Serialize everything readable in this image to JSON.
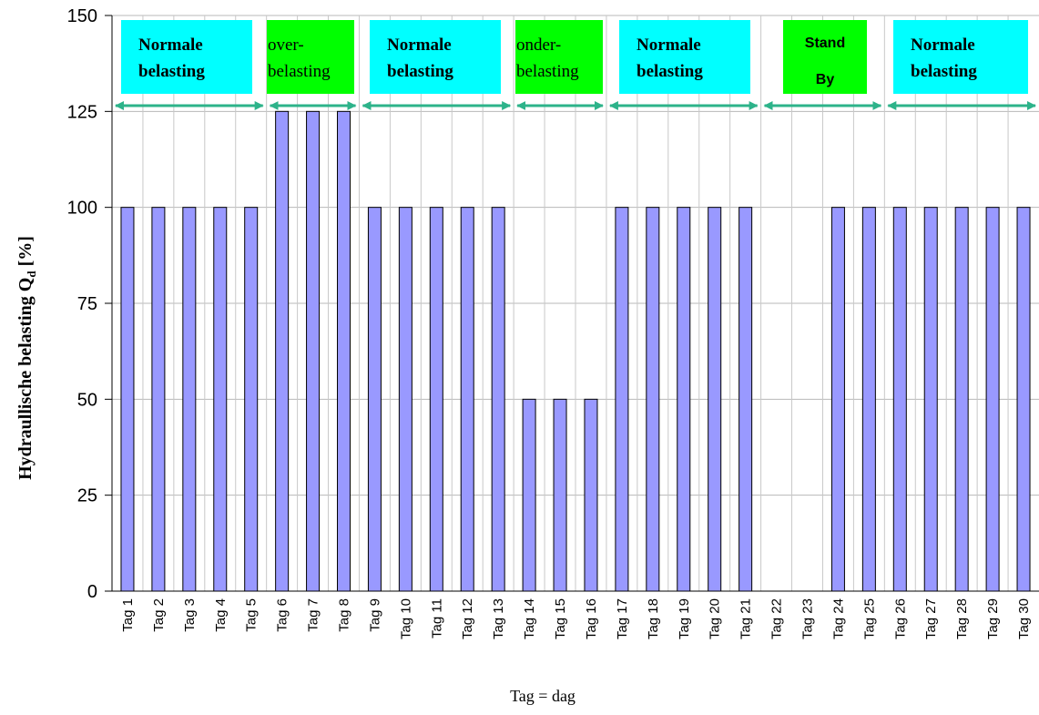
{
  "chart_data": {
    "type": "bar",
    "ylabel": "Hydraullische belasting Q",
    "ylabel_sub": "d",
    "ylabel_unit": " [%]",
    "xlabel": "Tag = dag",
    "ylim": [
      0,
      150
    ],
    "y_ticks": [
      "0",
      "25",
      "50",
      "75",
      "100",
      "125",
      "150"
    ],
    "grid": true,
    "categories": [
      "Tag 1",
      "Tag 2",
      "Tag 3",
      "Tag 4",
      "Tag 5",
      "Tag 6",
      "Tag 7",
      "Tag 8",
      "Tag 9",
      "Tag 10",
      "Tag 11",
      "Tag 12",
      "Tag 13",
      "Tag 14",
      "Tag 15",
      "Tag 16",
      "Tag 17",
      "Tag 18",
      "Tag 19",
      "Tag 20",
      "Tag 21",
      "Tag 22",
      "Tag 23",
      "Tag 24",
      "Tag 25",
      "Tag 26",
      "Tag 27",
      "Tag 28",
      "Tag 29",
      "Tag 30"
    ],
    "values": [
      100,
      100,
      100,
      100,
      100,
      125,
      125,
      125,
      100,
      100,
      100,
      100,
      100,
      50,
      50,
      50,
      100,
      100,
      100,
      100,
      100,
      0,
      0,
      100,
      100,
      100,
      100,
      100,
      100,
      100
    ],
    "bar_color": "#9999ff",
    "annotations": [
      {
        "lines": [
          "Normale",
          "belasting"
        ],
        "from_day": 1,
        "to_day": 5,
        "color": "#00ffff",
        "style": "bold-serif"
      },
      {
        "lines": [
          "over-",
          "belasting"
        ],
        "from_day": 6,
        "to_day": 8,
        "color": "#00ff00",
        "style": "serif"
      },
      {
        "lines": [
          "Normale",
          "belasting"
        ],
        "from_day": 9,
        "to_day": 13,
        "color": "#00ffff",
        "style": "bold-serif"
      },
      {
        "lines": [
          "onder-",
          "belasting"
        ],
        "from_day": 14,
        "to_day": 16,
        "color": "#00ff00",
        "style": "serif"
      },
      {
        "lines": [
          "Normale",
          "belasting"
        ],
        "from_day": 17,
        "to_day": 21,
        "color": "#00ffff",
        "style": "bold-serif"
      },
      {
        "lines": [
          "Stand",
          "By"
        ],
        "from_day": 22,
        "to_day": 25,
        "color": "#00ff00",
        "style": "bold-sans"
      },
      {
        "lines": [
          "Normale",
          "belasting"
        ],
        "from_day": 26,
        "to_day": 30,
        "color": "#00ffff",
        "style": "bold-serif"
      }
    ],
    "arrow_color": "#2db38a"
  }
}
